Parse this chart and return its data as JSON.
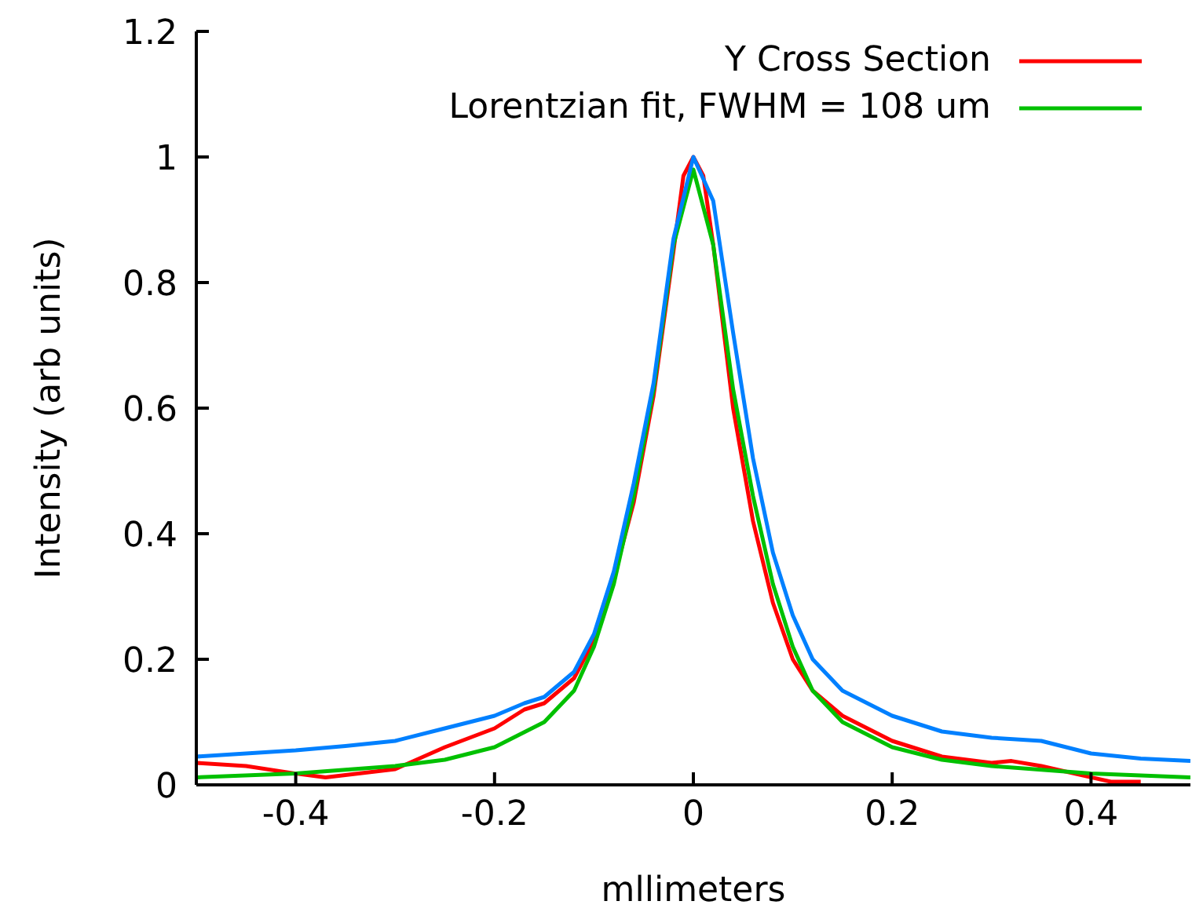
{
  "chart_data": {
    "type": "line",
    "xlabel": "mllimeters",
    "ylabel": "Intensity (arb units)",
    "xlim": [
      -0.5,
      0.5
    ],
    "xticks": [
      -0.4,
      -0.2,
      0,
      0.2,
      0.4
    ],
    "ylim": [
      0,
      1.2
    ],
    "yticks": [
      0,
      0.2,
      0.4,
      0.6,
      0.8,
      1,
      1.2
    ],
    "legend": "top right",
    "grid": false,
    "marker": "none",
    "line_style": "solid",
    "series": [
      {
        "name": "Y Cross Section",
        "color": "#ff0000",
        "x": [
          -0.5,
          -0.45,
          -0.4,
          -0.37,
          -0.3,
          -0.25,
          -0.2,
          -0.17,
          -0.15,
          -0.12,
          -0.1,
          -0.08,
          -0.06,
          -0.04,
          -0.02,
          -0.01,
          0,
          0.01,
          0.02,
          0.04,
          0.06,
          0.08,
          0.1,
          0.12,
          0.15,
          0.2,
          0.25,
          0.3,
          0.32,
          0.35,
          0.4,
          0.42,
          0.45
        ],
        "values": [
          0.035,
          0.03,
          0.018,
          0.012,
          0.025,
          0.06,
          0.09,
          0.12,
          0.13,
          0.17,
          0.23,
          0.33,
          0.45,
          0.62,
          0.85,
          0.97,
          1.0,
          0.97,
          0.86,
          0.6,
          0.42,
          0.29,
          0.2,
          0.15,
          0.11,
          0.07,
          0.045,
          0.035,
          0.038,
          0.03,
          0.012,
          0.005,
          0.005
        ]
      },
      {
        "name": "Lorentzian fit, FWHM = 108 um",
        "color": "#00c000",
        "x": [
          -0.5,
          -0.4,
          -0.3,
          -0.25,
          -0.2,
          -0.15,
          -0.12,
          -0.1,
          -0.08,
          -0.06,
          -0.04,
          -0.02,
          0,
          0.02,
          0.04,
          0.06,
          0.08,
          0.1,
          0.12,
          0.15,
          0.2,
          0.25,
          0.3,
          0.4,
          0.5
        ],
        "values": [
          0.012,
          0.018,
          0.03,
          0.04,
          0.06,
          0.1,
          0.15,
          0.22,
          0.32,
          0.46,
          0.63,
          0.86,
          0.98,
          0.86,
          0.63,
          0.46,
          0.32,
          0.22,
          0.15,
          0.1,
          0.06,
          0.04,
          0.03,
          0.018,
          0.012
        ]
      },
      {
        "color": "#0080ff",
        "x": [
          -0.5,
          -0.45,
          -0.4,
          -0.35,
          -0.3,
          -0.25,
          -0.2,
          -0.17,
          -0.15,
          -0.12,
          -0.1,
          -0.08,
          -0.06,
          -0.04,
          -0.02,
          0,
          0.02,
          0.04,
          0.06,
          0.08,
          0.1,
          0.12,
          0.15,
          0.2,
          0.25,
          0.3,
          0.35,
          0.4,
          0.45,
          0.5
        ],
        "values": [
          0.045,
          0.05,
          0.055,
          0.062,
          0.07,
          0.09,
          0.11,
          0.13,
          0.14,
          0.18,
          0.24,
          0.34,
          0.48,
          0.64,
          0.87,
          1.0,
          0.93,
          0.72,
          0.52,
          0.37,
          0.27,
          0.2,
          0.15,
          0.11,
          0.085,
          0.075,
          0.07,
          0.05,
          0.042,
          0.038
        ]
      }
    ]
  }
}
